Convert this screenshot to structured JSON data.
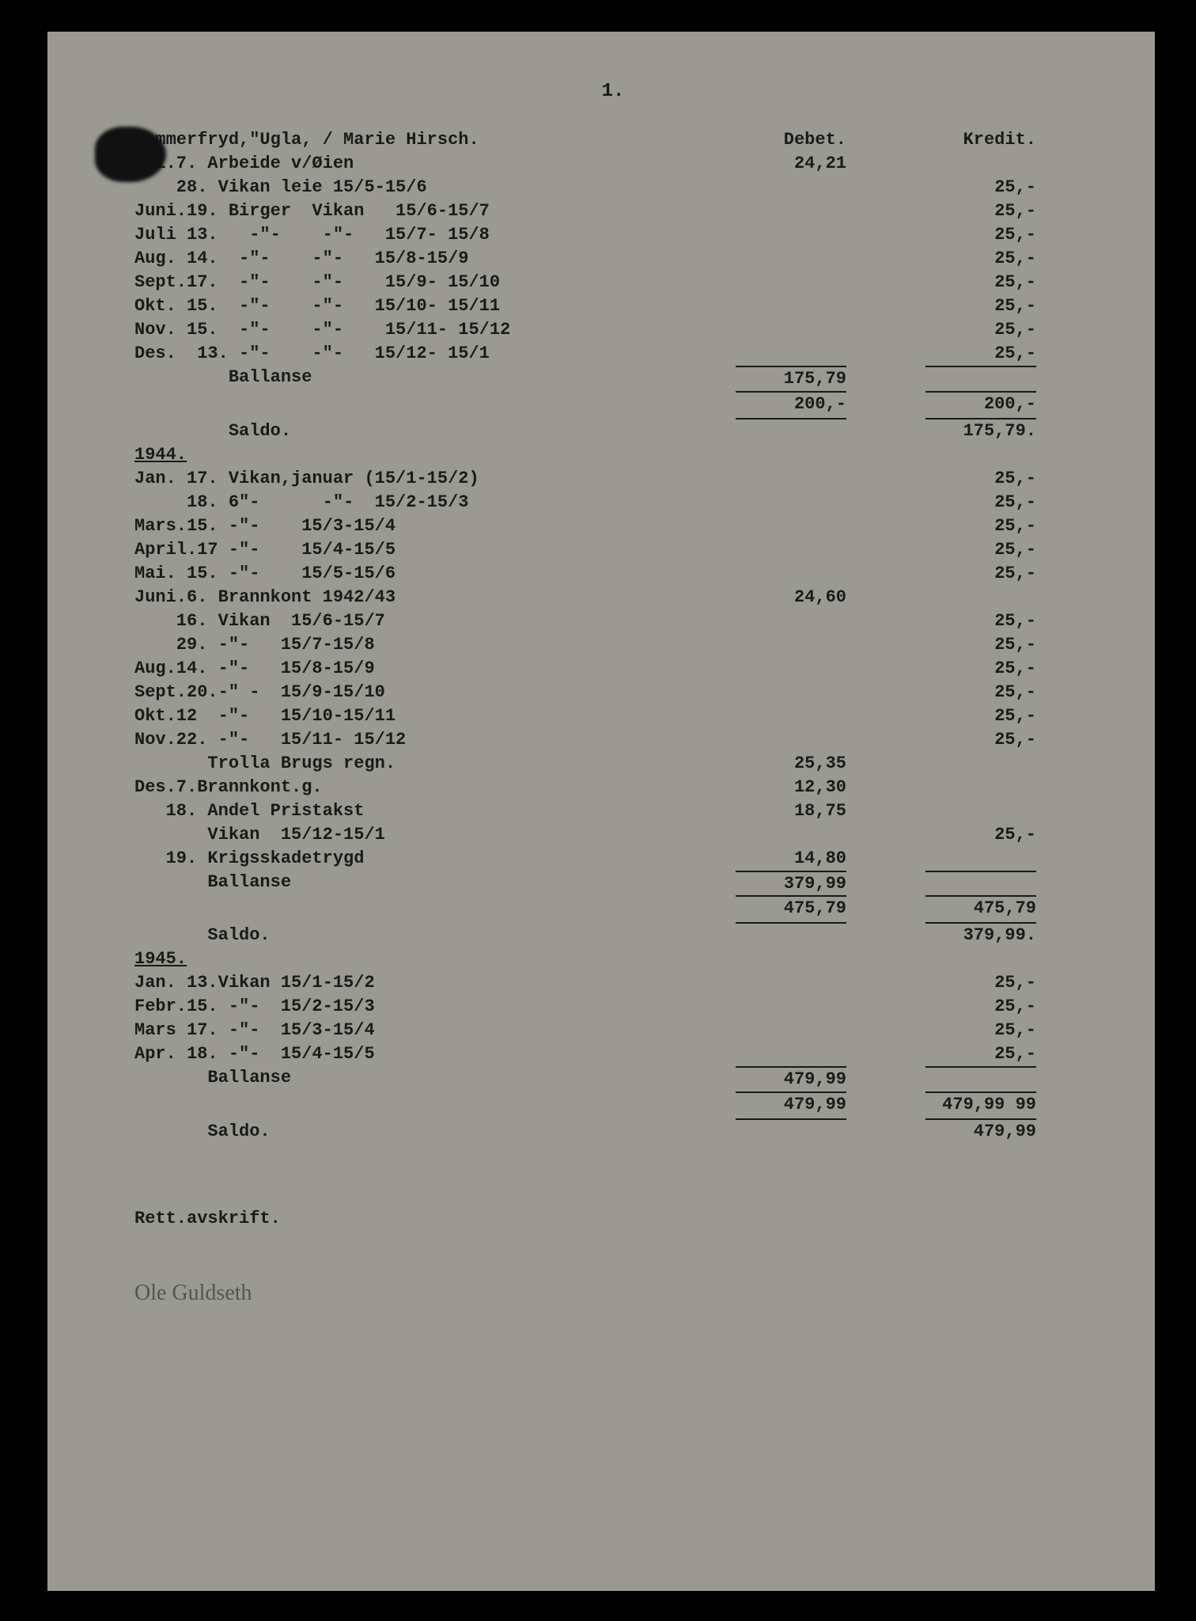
{
  "pageNumber": "1.",
  "title": "Sommerfryd,\"Ugla, / Marie Hirsch.",
  "colDebet": "Debet.",
  "colKredit": "Kredit.",
  "section1": [
    {
      "d": "Mai.7. Arbeide v/Øien",
      "deb": "24,21",
      "kr": ""
    },
    {
      "d": "    28. Vikan leie 15/5-15/6",
      "deb": "",
      "kr": "25,-"
    },
    {
      "d": "Juni.19. Birger  Vikan   15/6-15/7",
      "deb": "",
      "kr": "25,-"
    },
    {
      "d": "Juli 13.   -\"-    -\"-   15/7- 15/8",
      "deb": "",
      "kr": "25,-"
    },
    {
      "d": "Aug. 14.  -\"-    -\"-   15/8-15/9",
      "deb": "",
      "kr": "25,-"
    },
    {
      "d": "Sept.17.  -\"-    -\"-    15/9- 15/10",
      "deb": "",
      "kr": "25,-"
    },
    {
      "d": "Okt. 15.  -\"-    -\"-   15/10- 15/11",
      "deb": "",
      "kr": "25,-"
    },
    {
      "d": "Nov. 15.  -\"-    -\"-    15/11- 15/12",
      "deb": "",
      "kr": "25,-"
    },
    {
      "d": "Des.  13. -\"-    -\"-   15/12- 15/1",
      "deb": "",
      "kr": "25,-"
    }
  ],
  "bal1Label": "         Ballanse",
  "bal1Deb": "175,79",
  "sum1Deb": "200,-",
  "sum1Kr": "200,-",
  "saldo1Label": "         Saldo.",
  "saldo1Kr": "175,79.",
  "year1944": "1944.",
  "section2": [
    {
      "d": "Jan. 17. Vikan,januar (15/1-15/2)",
      "deb": "",
      "kr": "25,-"
    },
    {
      "d": "     18. 6\"-      -\"-  15/2-15/3",
      "deb": "",
      "kr": "25,-"
    },
    {
      "d": "Mars.15. -\"-    15/3-15/4",
      "deb": "",
      "kr": "25,-"
    },
    {
      "d": "April.17 -\"-    15/4-15/5",
      "deb": "",
      "kr": "25,-"
    },
    {
      "d": "Mai. 15. -\"-    15/5-15/6",
      "deb": "",
      "kr": "25,-"
    },
    {
      "d": "Juni.6. Brannkont 1942/43",
      "deb": "24,60",
      "kr": ""
    },
    {
      "d": "    16. Vikan  15/6-15/7",
      "deb": "",
      "kr": "25,-"
    },
    {
      "d": "    29. -\"-   15/7-15/8",
      "deb": "",
      "kr": "25,-"
    },
    {
      "d": "Aug.14. -\"-   15/8-15/9",
      "deb": "",
      "kr": "25,-"
    },
    {
      "d": "Sept.20.-\" -  15/9-15/10",
      "deb": "",
      "kr": "25,-"
    },
    {
      "d": "Okt.12  -\"-   15/10-15/11",
      "deb": "",
      "kr": "25,-"
    },
    {
      "d": "Nov.22. -\"-   15/11- 15/12",
      "deb": "",
      "kr": "25,-"
    }
  ],
  "trolla": "       Trolla Brugs regn.",
  "trollaDeb": "25,35",
  "des7": "Des.7.Brannkont.g.",
  "des7Deb": "12,30",
  "andel": "   18. Andel Pristakst",
  "andelDeb": "18,75",
  "vikanDes": "       Vikan  15/12-15/1",
  "vikanDesKr": "25,-",
  "krig": "   19. Krigsskadetrygd",
  "krigDeb": "14,80",
  "bal2Label": "       Ballanse",
  "bal2Deb": "379,99",
  "sum2Deb": "475,79",
  "sum2Kr": "475,79",
  "saldo2Label": "       Saldo.",
  "saldo2Kr": "379,99.",
  "year1945": "1945.",
  "section3": [
    {
      "d": "Jan. 13.Vikan 15/1-15/2",
      "deb": "",
      "kr": "25,-"
    },
    {
      "d": "Febr.15. -\"-  15/2-15/3",
      "deb": "",
      "kr": "25,-"
    },
    {
      "d": "Mars 17. -\"-  15/3-15/4",
      "deb": "",
      "kr": "25,-"
    },
    {
      "d": "Apr. 18. -\"-  15/4-15/5",
      "deb": "",
      "kr": "25,-"
    }
  ],
  "bal3Label": "       Ballanse",
  "bal3Deb": "479,99",
  "sum3Deb": "479,99",
  "sum3Kr": "479,99 99",
  "saldo3Label": "       Saldo.",
  "saldo3Kr": "479,99",
  "rett": "Rett.avskrift.",
  "signature": "Ole Guldseth"
}
